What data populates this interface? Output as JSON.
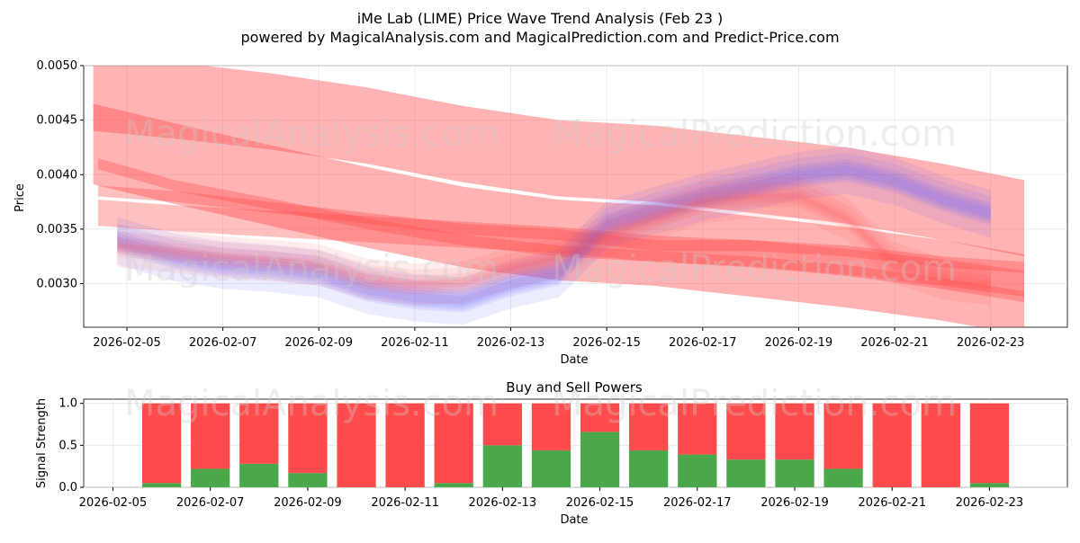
{
  "title_line1": "iMe Lab (LIME) Price Wave Trend Analysis (Feb 23 )",
  "title_line2": "powered by MagicalAnalysis.com and MagicalPrediction.com and Predict-Price.com",
  "watermarks": [
    "MagicalAnalysis.com",
    "MagicalPrediction.com"
  ],
  "colors": {
    "red": "#ff4b4b",
    "blue": "#6464ff",
    "green": "#4aa84a",
    "sell": "#ff4b4b"
  },
  "chart_data": [
    {
      "type": "area",
      "title": "",
      "xlabel": "Date",
      "ylabel": "Price",
      "xlim": [
        -0.9,
        19.6
      ],
      "ylim": [
        0.0026,
        0.005
      ],
      "x_ticks": [
        "2026-02-05",
        "2026-02-07",
        "2026-02-09",
        "2026-02-11",
        "2026-02-13",
        "2026-02-15",
        "2026-02-17",
        "2026-02-19",
        "2026-02-21",
        "2026-02-23"
      ],
      "x_tick_positions": [
        0,
        2,
        4,
        6,
        8,
        10,
        12,
        14,
        16,
        18
      ],
      "y_ticks": [
        "0.0030",
        "0.0035",
        "0.0040",
        "0.0045",
        "0.0050"
      ],
      "y_tick_values": [
        0.003,
        0.0035,
        0.004,
        0.0045,
        0.005
      ],
      "red_bands": [
        {
          "x": [
            -0.7,
            1,
            3,
            5,
            7,
            9,
            11,
            13,
            15,
            17,
            18.7
          ],
          "center": [
            0.00475,
            0.00468,
            0.00458,
            0.00445,
            0.00428,
            0.00415,
            0.0041,
            0.004,
            0.0039,
            0.00375,
            0.0036
          ],
          "half_width": 0.00035
        },
        {
          "x": [
            -0.7,
            1,
            3,
            5,
            7,
            9,
            11,
            13,
            15,
            17,
            18.7
          ],
          "center": [
            0.00428,
            0.0041,
            0.0039,
            0.0037,
            0.00352,
            0.0034,
            0.00335,
            0.00325,
            0.00315,
            0.00303,
            0.0029
          ],
          "half_width": 0.00037
        },
        {
          "x": [
            -0.6,
            1,
            3,
            5,
            7,
            9,
            11,
            13,
            15,
            17,
            18.7
          ],
          "center": [
            0.0041,
            0.0039,
            0.00373,
            0.00355,
            0.0034,
            0.0033,
            0.00325,
            0.0032,
            0.00312,
            0.003,
            0.00288
          ],
          "half_width": 5e-05
        },
        {
          "x": [
            -0.6,
            1,
            3,
            5,
            7,
            9,
            11,
            13,
            15,
            17,
            18.7
          ],
          "center": [
            0.00365,
            0.0036,
            0.00355,
            0.0035,
            0.00345,
            0.0034,
            0.00332,
            0.00328,
            0.0032,
            0.0031,
            0.003
          ],
          "half_width": 0.00012
        },
        {
          "x": [
            -0.6,
            1,
            3,
            5,
            7,
            9,
            11,
            13,
            15,
            17,
            18.7
          ],
          "center": [
            0.00385,
            0.0038,
            0.0037,
            0.0036,
            0.0035,
            0.00345,
            0.00335,
            0.00335,
            0.0033,
            0.0032,
            0.00315
          ],
          "half_width": 5e-05
        }
      ],
      "red_wave": {
        "x": [
          -0.2,
          1,
          2,
          3,
          4,
          5,
          6,
          7,
          8,
          9,
          10,
          11,
          12,
          13,
          14,
          15,
          16,
          17,
          18
        ],
        "values": [
          0.00335,
          0.0033,
          0.00325,
          0.00322,
          0.00318,
          0.00305,
          0.003,
          0.00302,
          0.00315,
          0.00325,
          0.00345,
          0.0036,
          0.00375,
          0.0038,
          0.0038,
          0.0036,
          0.0032,
          0.00305,
          0.003
        ],
        "half_width": 0.00012
      },
      "blue_wave": {
        "x": [
          -0.2,
          1,
          2,
          3,
          4,
          5,
          6,
          7,
          8,
          9,
          10,
          11,
          12,
          13,
          14,
          15,
          16,
          17,
          18
        ],
        "values": [
          0.0034,
          0.00325,
          0.00318,
          0.00315,
          0.0031,
          0.00295,
          0.00288,
          0.00285,
          0.003,
          0.0031,
          0.00355,
          0.00368,
          0.0038,
          0.0039,
          0.004,
          0.00405,
          0.00395,
          0.00378,
          0.00365
        ],
        "half_width": 0.00015
      }
    },
    {
      "type": "bar",
      "title": "Buy and Sell Powers",
      "xlabel": "Date",
      "ylabel": "Signal Strength",
      "ylim": [
        0,
        1.05
      ],
      "xlim": [
        -0.6,
        19.6
      ],
      "x_ticks": [
        "2026-02-05",
        "2026-02-07",
        "2026-02-09",
        "2026-02-11",
        "2026-02-13",
        "2026-02-15",
        "2026-02-17",
        "2026-02-19",
        "2026-02-21",
        "2026-02-23"
      ],
      "y_ticks": [
        "0.0",
        "0.5",
        "1.0"
      ],
      "y_tick_values": [
        0.0,
        0.5,
        1.0
      ],
      "bar_positions": [
        1,
        2,
        3,
        4,
        5,
        6,
        7,
        8,
        9,
        10,
        11,
        12,
        13,
        14,
        15,
        16,
        17,
        18
      ],
      "buy_values": [
        0.05,
        0.22,
        0.28,
        0.17,
        0.0,
        0.0,
        0.05,
        0.5,
        0.44,
        0.66,
        0.44,
        0.39,
        0.33,
        0.33,
        0.22,
        0.0,
        0.0,
        0.05
      ],
      "sell_values": [
        0.95,
        0.78,
        0.72,
        0.83,
        1.0,
        1.0,
        0.95,
        0.5,
        0.56,
        0.34,
        0.56,
        0.61,
        0.67,
        0.67,
        0.78,
        1.0,
        1.0,
        0.95
      ]
    }
  ]
}
